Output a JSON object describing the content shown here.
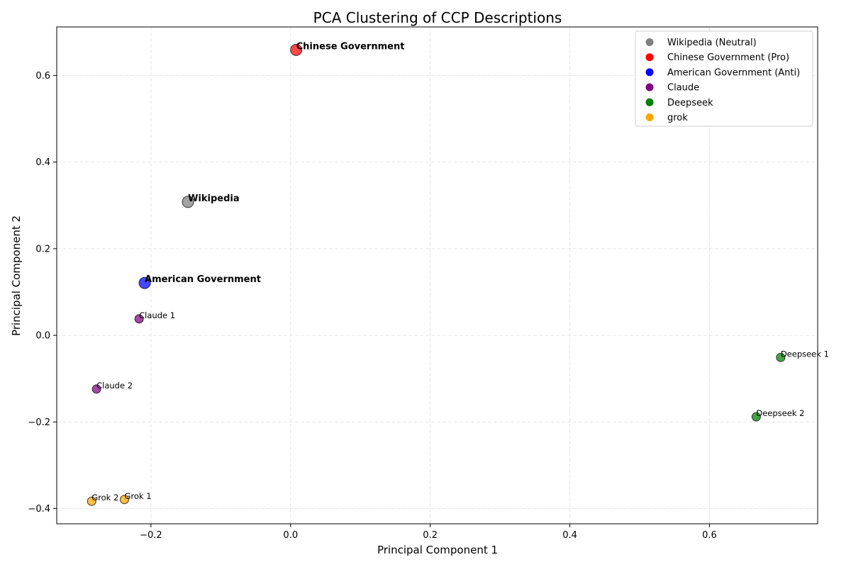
{
  "chart_data": {
    "type": "scatter",
    "title": "PCA Clustering of CCP Descriptions",
    "xlabel": "Principal Component 1",
    "ylabel": "Principal Component 2",
    "xlim": [
      -0.335,
      0.755
    ],
    "ylim": [
      -0.435,
      0.712
    ],
    "xticks": [
      -0.2,
      0.0,
      0.2,
      0.4,
      0.6
    ],
    "xtick_labels": [
      "−0.2",
      "0.0",
      "0.2",
      "0.4",
      "0.6"
    ],
    "yticks": [
      -0.4,
      -0.2,
      0.0,
      0.2,
      0.4,
      0.6
    ],
    "ytick_labels": [
      "−0.4",
      "−0.2",
      "0.0",
      "0.2",
      "0.4",
      "0.6"
    ],
    "grid": true,
    "legend_position": "top-right",
    "legend": [
      {
        "label": "Wikipedia (Neutral)",
        "color": "#808080"
      },
      {
        "label": "Chinese Government (Pro)",
        "color": "#ff0000"
      },
      {
        "label": "American Government (Anti)",
        "color": "#0000ff"
      },
      {
        "label": "Claude",
        "color": "#800080"
      },
      {
        "label": "Deepseek",
        "color": "#008000"
      },
      {
        "label": "grok",
        "color": "#ffa500"
      }
    ],
    "points": [
      {
        "label": "Chinese Government",
        "x": 0.008,
        "y": 0.659,
        "color": "#ff0000",
        "emphasis": true
      },
      {
        "label": "Wikipedia",
        "x": -0.147,
        "y": 0.308,
        "color": "#808080",
        "emphasis": true
      },
      {
        "label": "American Government",
        "x": -0.209,
        "y": 0.121,
        "color": "#0000ff",
        "emphasis": true
      },
      {
        "label": "Claude 1",
        "x": -0.217,
        "y": 0.038,
        "color": "#800080",
        "emphasis": false
      },
      {
        "label": "Claude 2",
        "x": -0.278,
        "y": -0.124,
        "color": "#800080",
        "emphasis": false
      },
      {
        "label": "Deepseek 1",
        "x": 0.702,
        "y": -0.051,
        "color": "#008000",
        "emphasis": false
      },
      {
        "label": "Deepseek 2",
        "x": 0.667,
        "y": -0.188,
        "color": "#008000",
        "emphasis": false
      },
      {
        "label": "Grok 1",
        "x": -0.238,
        "y": -0.379,
        "color": "#ffa500",
        "emphasis": false
      },
      {
        "label": "Grok 2",
        "x": -0.285,
        "y": -0.383,
        "color": "#ffa500",
        "emphasis": false
      }
    ]
  }
}
